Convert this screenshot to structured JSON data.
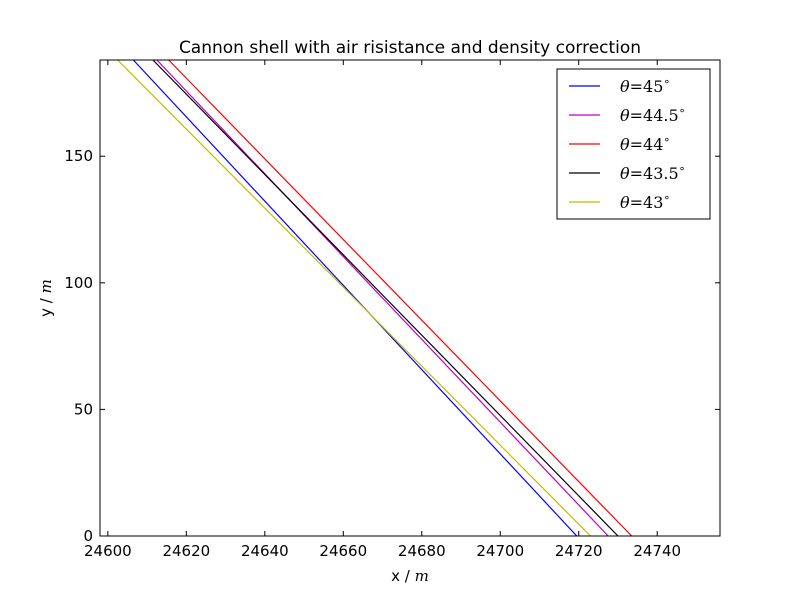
{
  "chart_data": {
    "type": "line",
    "title": "Cannon shell with air risistance and density correction",
    "xlabel": {
      "text": "x / ",
      "unit": "m"
    },
    "ylabel": {
      "text": "y / ",
      "unit": "m"
    },
    "xlim": [
      24598,
      24756
    ],
    "ylim": [
      0,
      188
    ],
    "xticks": [
      24600,
      24620,
      24640,
      24660,
      24680,
      24700,
      24720,
      24740
    ],
    "yticks": [
      0,
      50,
      100,
      150
    ],
    "grid": false,
    "legend_position": "top-right",
    "series": [
      {
        "name": "θ = 45°",
        "label_var": "θ",
        "label_value": "45",
        "color": "#0000ff",
        "x": [
          24606.5,
          24719.5
        ],
        "y": [
          188,
          0
        ]
      },
      {
        "name": "θ = 44.5°",
        "label_var": "θ",
        "label_value": "44.5",
        "color": "#bf00bf",
        "x": [
          24612.5,
          24727.5
        ],
        "y": [
          188,
          0
        ]
      },
      {
        "name": "θ = 44°",
        "label_var": "θ",
        "label_value": "44",
        "color": "#ff0000",
        "x": [
          24615.5,
          24733.5
        ],
        "y": [
          188,
          0
        ]
      },
      {
        "name": "θ = 43.5°",
        "label_var": "θ",
        "label_value": "43.5",
        "color": "#000000",
        "x": [
          24611.5,
          24730
        ],
        "y": [
          188,
          0
        ]
      },
      {
        "name": "θ = 43°",
        "label_var": "θ",
        "label_value": "43",
        "color": "#bfbf00",
        "x": [
          24602.5,
          24723
        ],
        "y": [
          188,
          0
        ]
      }
    ]
  }
}
